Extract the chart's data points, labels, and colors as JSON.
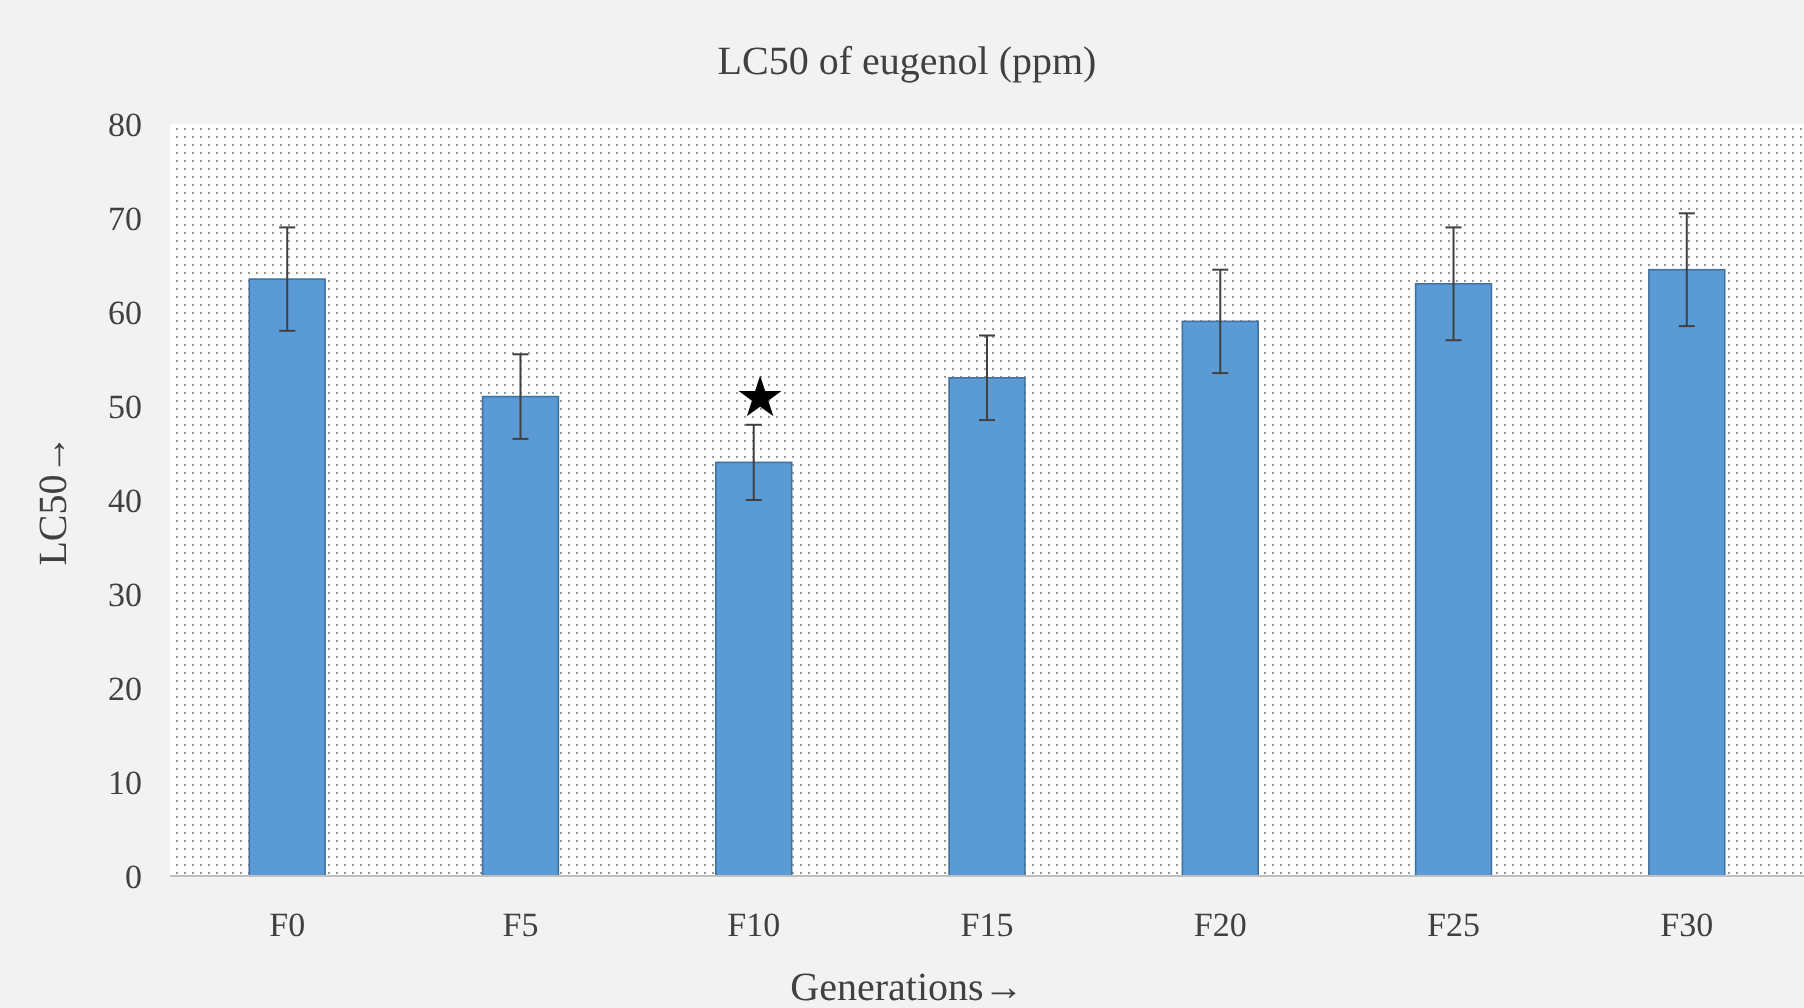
{
  "chart_data": {
    "type": "bar",
    "title": "LC50 of eugenol (ppm)",
    "xlabel": "Generations→",
    "ylabel": "LC50→",
    "categories": [
      "F0",
      "F5",
      "F10",
      "F15",
      "F20",
      "F25",
      "F30"
    ],
    "values": [
      63.5,
      51,
      44,
      53,
      59,
      63,
      64.5
    ],
    "errors": [
      5.5,
      4.5,
      4,
      4.5,
      5.5,
      6,
      6
    ],
    "color": "#5b9bd5",
    "ylim": [
      0,
      80
    ],
    "yticks": [
      0,
      10,
      20,
      30,
      40,
      50,
      60,
      70,
      80
    ],
    "grid": false,
    "annotations": [
      "★"
    ]
  }
}
